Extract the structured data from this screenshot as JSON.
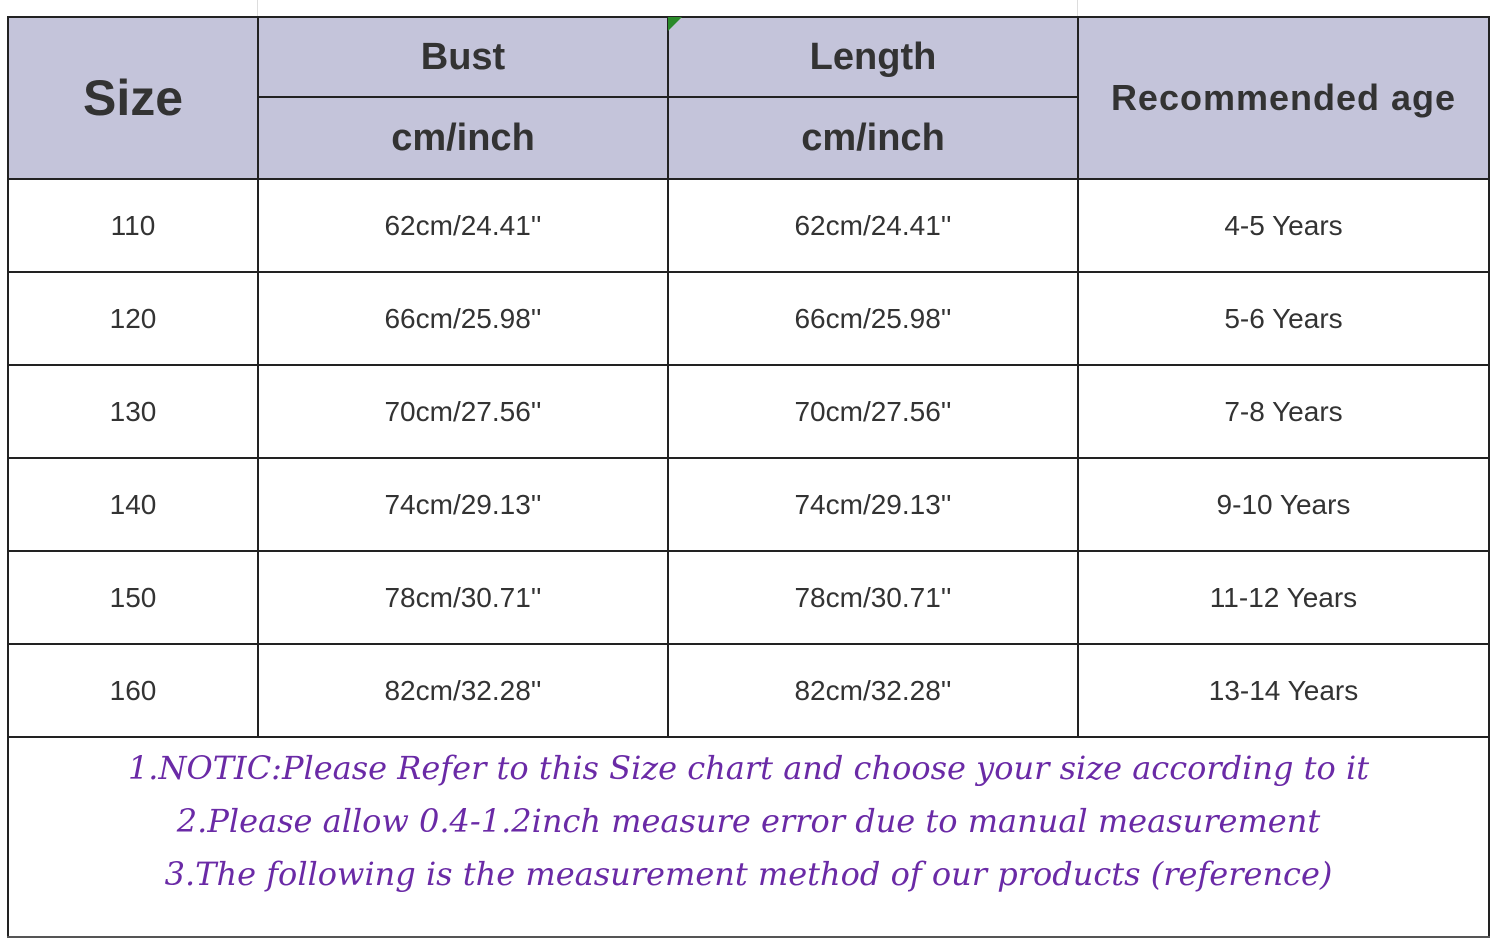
{
  "headers": {
    "size": "Size",
    "bust": "Bust",
    "length": "Length",
    "bust_unit": "cm/inch",
    "length_unit": "cm/inch",
    "age": "Recommended age"
  },
  "rows": [
    {
      "size": "110",
      "bust": "62cm/24.41''",
      "length": "62cm/24.41''",
      "age": "4-5 Years"
    },
    {
      "size": "120",
      "bust": "66cm/25.98''",
      "length": "66cm/25.98''",
      "age": "5-6 Years"
    },
    {
      "size": "130",
      "bust": "70cm/27.56''",
      "length": "70cm/27.56''",
      "age": "7-8 Years"
    },
    {
      "size": "140",
      "bust": "74cm/29.13''",
      "length": "74cm/29.13''",
      "age": "9-10 Years"
    },
    {
      "size": "150",
      "bust": "78cm/30.71''",
      "length": "78cm/30.71''",
      "age": "11-12 Years"
    },
    {
      "size": "160",
      "bust": "82cm/32.28''",
      "length": "82cm/32.28''",
      "age": "13-14 Years"
    }
  ],
  "notes": [
    "1.NOTIC:Please Refer to this Size chart and choose your size according to it",
    "2.Please allow 0.4-1.2inch measure error due to manual measurement",
    "3.The following is the measurement method of our products (reference)"
  ],
  "colors": {
    "header_bg": "#c4c4da",
    "notes_text": "#6a2aa6"
  }
}
